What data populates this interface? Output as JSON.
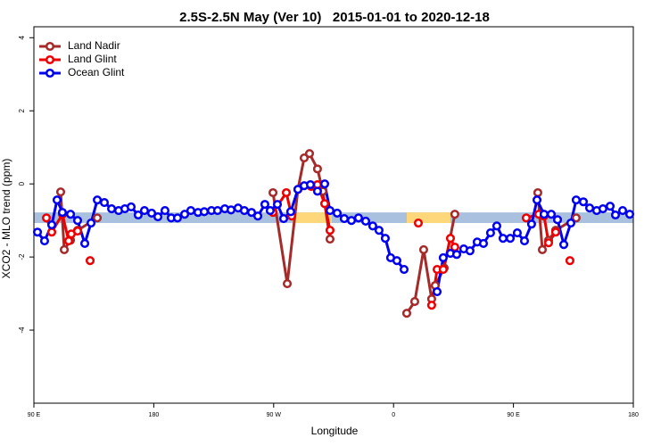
{
  "chart_data": {
    "type": "line",
    "title": "2.5S-2.5N May (Ver 10)   2015-01-01 to 2020-12-18",
    "x_label": "Longitude",
    "y_label": "XCO2 - MLO trend (ppm)",
    "xlim": [
      90,
      540
    ],
    "xticks": [
      {
        "value": 90,
        "label": "90 E"
      },
      180,
      {
        "value": 270,
        "label": "90 W"
      },
      {
        "value": 360,
        "label": "0"
      },
      {
        "value": 450,
        "label": "90 E"
      },
      {
        "value": 540,
        "label": "180"
      }
    ],
    "ylim": [
      -6,
      4.3
    ],
    "yticks": [
      -4,
      -2,
      0,
      2,
      4
    ],
    "legend": "top-left",
    "band": {
      "range": [
        -1.07,
        -0.78
      ],
      "color": "#a9c0de",
      "highlights": [
        {
          "x": [
            284.2,
            313.6
          ],
          "color": "#fdd77a"
        },
        {
          "x": [
            369.9,
            402.7
          ],
          "color": "#fdd77a"
        }
      ]
    },
    "series": [
      {
        "name": "Land Nadir",
        "color": "#a52a2a",
        "x": [
          110.1,
          112.8,
          117.5,
          122.8,
          137.6,
          null,
          269.5,
          280.2,
          288.2,
          292.9,
          296.9,
          302.9,
          306.9,
          312.3,
          null,
          369.9,
          375.9,
          382.6,
          388.6,
          391.3,
          398.0,
          406.0,
          null,
          468.3,
          471.7,
          476.4,
          481.7,
          497.1
        ],
        "values": [
          -0.22,
          -1.8,
          -1.54,
          -1.27,
          -0.93,
          null,
          -0.24,
          -2.73,
          -0.15,
          0.71,
          0.83,
          0.41,
          -0.2,
          -1.51,
          null,
          -3.54,
          -3.22,
          -1.8,
          -3.15,
          -2.78,
          -2.3,
          -0.83,
          null,
          -0.24,
          -1.8,
          -1.54,
          -1.27,
          -0.93
        ]
      },
      {
        "name": "Land Glint",
        "color": "#ee0000",
        "x": [
          99.4,
          103.4,
          111.4,
          116.1,
          118.1,
          122.8,
          null,
          132.2,
          null,
          269.5,
          279.5,
          283.5,
          null,
          298.2,
          302.9,
          308.3,
          312.3,
          null,
          378.6,
          null,
          388.6,
          392.7,
          397.3,
          402.7,
          406.0,
          null,
          459.6,
          469.0,
          473.0,
          476.4,
          481.7,
          null,
          492.4
        ],
        "values": [
          -0.93,
          -1.32,
          -0.83,
          -1.56,
          -1.37,
          -1.29,
          null,
          -2.1,
          null,
          -0.78,
          -0.24,
          -0.88,
          null,
          -0.07,
          -0.02,
          -0.54,
          -1.27,
          null,
          -1.07,
          null,
          -3.32,
          -2.34,
          -2.34,
          -1.49,
          -1.73,
          null,
          -0.93,
          -0.83,
          -0.88,
          -1.61,
          -1.32,
          null,
          -2.1
        ]
      },
      {
        "name": "Ocean Glint",
        "color": "#0000ee",
        "x": [
          92.7,
          98.0,
          103.4,
          107.4,
          111.4,
          117.5,
          122.8,
          128.2,
          132.9,
          137.6,
          142.9,
          148.3,
          153.6,
          158.3,
          163.0,
          168.3,
          173.0,
          178.4,
          183.1,
          188.4,
          193.1,
          197.8,
          203.2,
          207.8,
          213.2,
          217.9,
          223.3,
          227.9,
          233.3,
          238.0,
          243.3,
          248.0,
          253.4,
          258.1,
          263.4,
          267.4,
          272.8,
          277.5,
          282.8,
          288.2,
          292.9,
          297.6,
          302.9,
          308.3,
          312.3,
          317.7,
          323.0,
          328.4,
          333.7,
          339.1,
          344.4,
          349.1,
          353.8,
          357.8,
          362.5,
          367.9,
          null,
          392.7,
          397.3,
          402.7,
          407.4,
          412.7,
          417.4,
          422.8,
          427.5,
          432.8,
          437.5,
          442.2,
          447.6,
          452.9,
          458.3,
          463.6,
          467.7,
          473.0,
          478.4,
          483.1,
          487.8,
          493.1,
          497.1,
          502.5,
          507.2,
          512.5,
          517.2,
          522.6,
          526.6,
          532.0,
          537.3
        ],
        "values": [
          -1.32,
          -1.56,
          -1.12,
          -0.44,
          -0.78,
          -0.83,
          -1.0,
          -1.63,
          -1.07,
          -0.44,
          -0.51,
          -0.68,
          -0.73,
          -0.68,
          -0.63,
          -0.85,
          -0.73,
          -0.8,
          -0.9,
          -0.73,
          -0.93,
          -0.93,
          -0.83,
          -0.73,
          -0.78,
          -0.76,
          -0.73,
          -0.73,
          -0.68,
          -0.71,
          -0.66,
          -0.73,
          -0.78,
          -0.88,
          -0.56,
          -0.73,
          -0.56,
          -0.95,
          -0.76,
          -0.15,
          -0.05,
          -0.02,
          -0.2,
          0.0,
          -0.73,
          -0.8,
          -0.95,
          -1.0,
          -0.93,
          -1.02,
          -1.15,
          -1.27,
          -1.49,
          -2.02,
          -2.1,
          -2.34,
          null,
          -2.95,
          -2.02,
          -1.9,
          -1.93,
          -1.78,
          -1.83,
          -1.59,
          -1.63,
          -1.34,
          -1.15,
          -1.49,
          -1.49,
          -1.34,
          -1.56,
          -1.1,
          -0.44,
          -0.83,
          -0.83,
          -0.98,
          -1.66,
          -1.07,
          -0.44,
          -0.49,
          -0.66,
          -0.73,
          -0.68,
          -0.61,
          -0.85,
          -0.73,
          -0.83
        ]
      }
    ]
  }
}
